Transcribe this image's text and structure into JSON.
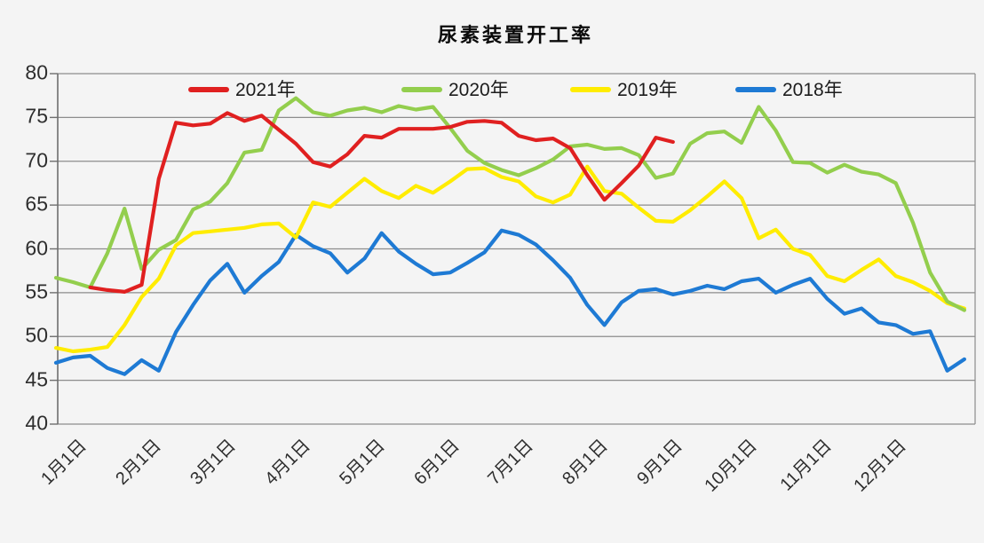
{
  "chart": {
    "title": "尿素装置开工率",
    "background": "#f4f4f4",
    "grid_color": "#8c8c8c",
    "axis_color": "#6e6e6e",
    "text_color": "#2e2e2e",
    "legend": [
      {
        "label": "2021年",
        "color": "#e02020"
      },
      {
        "label": "2020年",
        "color": "#93ce4d"
      },
      {
        "label": "2019年",
        "color": "#ffec00"
      },
      {
        "label": "2018年",
        "color": "#1e7ad4"
      }
    ]
  },
  "chart_data": {
    "type": "line",
    "title": "尿素装置开工率",
    "xlabel": "",
    "ylabel": "",
    "ylim": [
      40,
      80
    ],
    "y_ticks": [
      80,
      75,
      70,
      65,
      60,
      55,
      50,
      45,
      40
    ],
    "x_tick_labels": [
      "1月1日",
      "2月1日",
      "3月1日",
      "4月1日",
      "5月1日",
      "6月1日",
      "7月1日",
      "8月1日",
      "9月1日",
      "10月1日",
      "11月1日",
      "12月1日"
    ],
    "x_unit": "weekly data across one year",
    "grid": "horizontal-only",
    "legend_position": "top-inside",
    "series": [
      {
        "name": "2021年",
        "color": "#e02020",
        "start_week": 2,
        "values": [
          55.6,
          55.3,
          55.1,
          55.9,
          68.0,
          74.4,
          74.1,
          74.3,
          75.5,
          74.6,
          75.2,
          73.6,
          72.0,
          69.9,
          69.4,
          70.8,
          72.9,
          72.7,
          73.7,
          73.7,
          73.7,
          73.9,
          74.5,
          74.6,
          74.4,
          72.9,
          72.4,
          72.6,
          71.5,
          68.4,
          65.6,
          67.5,
          69.5,
          72.7,
          72.2
        ]
      },
      {
        "name": "2020年",
        "color": "#93ce4d",
        "start_week": 0,
        "values": [
          56.7,
          56.2,
          55.6,
          59.5,
          64.6,
          57.7,
          59.9,
          61.0,
          64.5,
          65.4,
          67.5,
          71.0,
          71.3,
          75.8,
          77.2,
          75.6,
          75.2,
          75.8,
          76.1,
          75.6,
          76.3,
          75.9,
          76.2,
          73.8,
          71.2,
          69.8,
          69.0,
          68.4,
          69.2,
          70.2,
          71.7,
          71.9,
          71.4,
          71.5,
          70.7,
          68.1,
          68.6,
          72.0,
          73.2,
          73.4,
          72.1,
          76.2,
          73.5,
          69.9,
          69.8,
          68.7,
          69.6,
          68.8,
          68.5,
          67.5,
          63.0,
          57.3,
          54.0,
          53.0
        ]
      },
      {
        "name": "2019年",
        "color": "#ffec00",
        "start_week": 0,
        "values": [
          48.7,
          48.3,
          48.5,
          48.8,
          51.3,
          54.5,
          56.6,
          60.4,
          61.8,
          62.0,
          62.2,
          62.4,
          62.8,
          62.9,
          61.3,
          65.3,
          64.8,
          66.4,
          68.0,
          66.6,
          65.8,
          67.2,
          66.4,
          67.7,
          69.1,
          69.2,
          68.2,
          67.7,
          66.0,
          65.3,
          66.2,
          69.4,
          66.6,
          66.3,
          64.7,
          63.2,
          63.1,
          64.4,
          66.0,
          67.7,
          65.8,
          61.2,
          62.2,
          60.0,
          59.3,
          56.9,
          56.3,
          57.6,
          58.8,
          56.9,
          56.2,
          55.2,
          53.8,
          53.2
        ]
      },
      {
        "name": "2018年",
        "color": "#1e7ad4",
        "start_week": 0,
        "values": [
          47.0,
          47.6,
          47.8,
          46.4,
          45.7,
          47.3,
          46.1,
          50.5,
          53.6,
          56.4,
          58.3,
          55.0,
          56.9,
          58.5,
          61.6,
          60.3,
          59.5,
          57.3,
          58.9,
          61.8,
          59.7,
          58.3,
          57.1,
          57.3,
          58.4,
          59.6,
          62.1,
          61.6,
          60.5,
          58.7,
          56.7,
          53.6,
          51.3,
          53.9,
          55.2,
          55.4,
          54.8,
          55.2,
          55.8,
          55.4,
          56.3,
          56.6,
          55.0,
          55.9,
          56.6,
          54.3,
          52.6,
          53.2,
          51.6,
          51.3,
          50.3,
          50.6,
          46.1,
          47.4
        ]
      }
    ]
  }
}
